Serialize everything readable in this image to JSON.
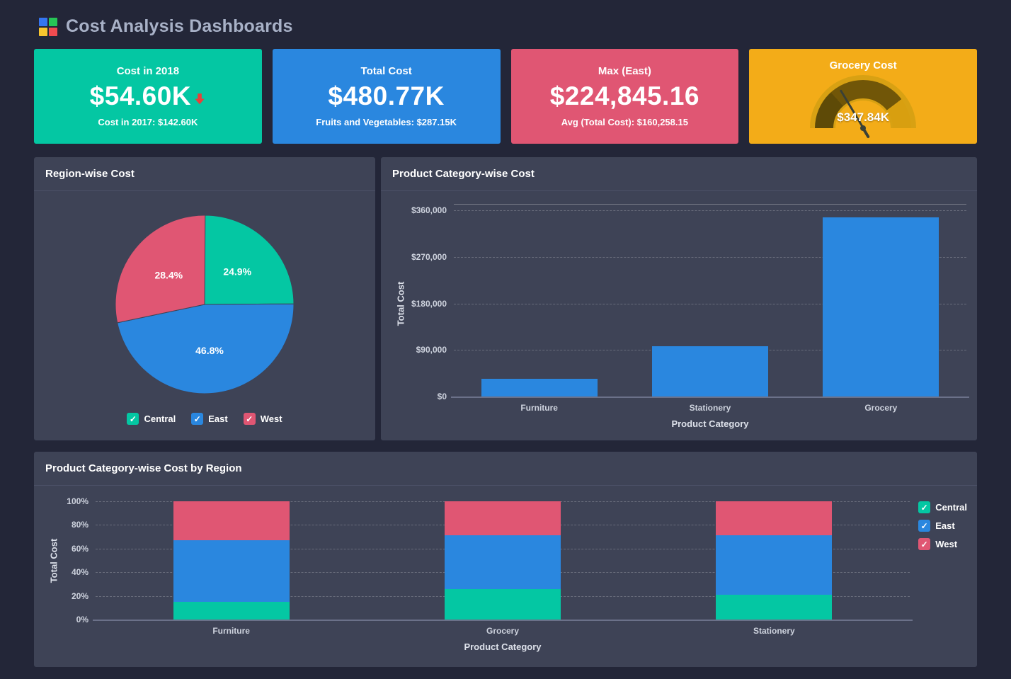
{
  "header": {
    "title": "Cost Analysis Dashboards",
    "logo_colors": [
      "#3575f0",
      "#27c456",
      "#f7c52f",
      "#f04b50"
    ]
  },
  "kpi_cards": [
    {
      "title": "Cost in 2018",
      "value": "$54.60K",
      "trend": "down",
      "subtitle": "Cost in 2017: $142.60K",
      "color": "#04c7a3"
    },
    {
      "title": "Total Cost",
      "value": "$480.77K",
      "subtitle": "Fruits and Vegetables: $287.15K",
      "color": "#2a87df"
    },
    {
      "title": "Max (East)",
      "value": "$224,845.16",
      "subtitle": "Avg (Total Cost): $160,258.15",
      "color": "#e05673"
    },
    {
      "title": "Grocery Cost",
      "value": "$347.84K",
      "widget": "gauge",
      "color": "#f3ac18"
    }
  ],
  "chart_data": [
    {
      "id": "region-pie",
      "type": "pie",
      "title": "Region-wise Cost",
      "labels": [
        "Central",
        "East",
        "West"
      ],
      "values": [
        24.9,
        46.8,
        28.4
      ],
      "slice_labels": [
        "24.9%",
        "46.8%",
        "28.4%"
      ],
      "colors": [
        "#04c7a3",
        "#2a87df",
        "#e05673"
      ],
      "legend": {
        "position": "bottom",
        "items": [
          "Central",
          "East",
          "West"
        ]
      }
    },
    {
      "id": "category-bar",
      "type": "bar",
      "title": "Product Category-wise Cost",
      "categories": [
        "Furniture",
        "Stationery",
        "Grocery"
      ],
      "values": [
        34000,
        97000,
        346000
      ],
      "color": "#2a87df",
      "xlabel": "Product Category",
      "ylabel": "Total Cost",
      "ylim": [
        0,
        360000
      ],
      "yticks": [
        "$0",
        "$90,000",
        "$180,000",
        "$270,000",
        "$360,000"
      ],
      "grid": "dashed-horizontal"
    },
    {
      "id": "stacked-bar",
      "type": "bar-stacked-100",
      "title": "Product Category-wise Cost by Region",
      "categories": [
        "Furniture",
        "Grocery",
        "Stationery"
      ],
      "series": [
        {
          "name": "Central",
          "color": "#04c7a3",
          "values": [
            15,
            26,
            21
          ]
        },
        {
          "name": "East",
          "color": "#2a87df",
          "values": [
            52,
            45,
            50
          ]
        },
        {
          "name": "West",
          "color": "#e05673",
          "values": [
            33,
            29,
            29
          ]
        }
      ],
      "xlabel": "Product Category",
      "ylabel": "Total Cost",
      "ylim": [
        0,
        100
      ],
      "yticks": [
        "0%",
        "20%",
        "40%",
        "60%",
        "80%",
        "100%"
      ],
      "grid": "dashed-horizontal",
      "legend": {
        "position": "right",
        "items": [
          "Central",
          "East",
          "West"
        ]
      }
    }
  ]
}
